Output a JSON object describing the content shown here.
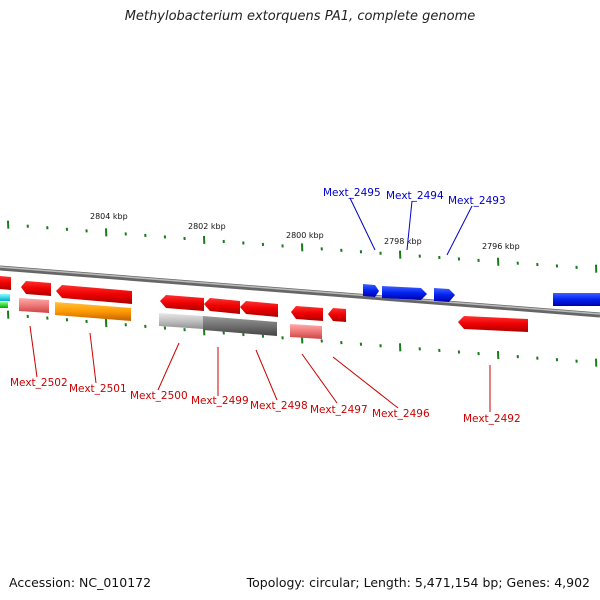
{
  "title": "Methylobacterium extorquens PA1, complete genome",
  "footer": {
    "accession": "Accession: NC_010172",
    "topology": "Topology: circular; Length: 5,471,154 bp; Genes: 4,902"
  },
  "colors": {
    "forward": "#0000cc",
    "reverse": "#cc0000",
    "gc_tick": "#1a7a1a",
    "backbone": "#8a8a8a"
  },
  "kbp_labels": [
    "2804 kbp",
    "2802 kbp",
    "2800 kbp",
    "2798 kbp",
    "2796 kbp"
  ],
  "forward_genes": [
    "Mext_2495",
    "Mext_2494",
    "Mext_2493"
  ],
  "reverse_genes": [
    "Mext_2502",
    "Mext_2501",
    "Mext_2500",
    "Mext_2499",
    "Mext_2498",
    "Mext_2497",
    "Mext_2496",
    "Mext_2492"
  ]
}
